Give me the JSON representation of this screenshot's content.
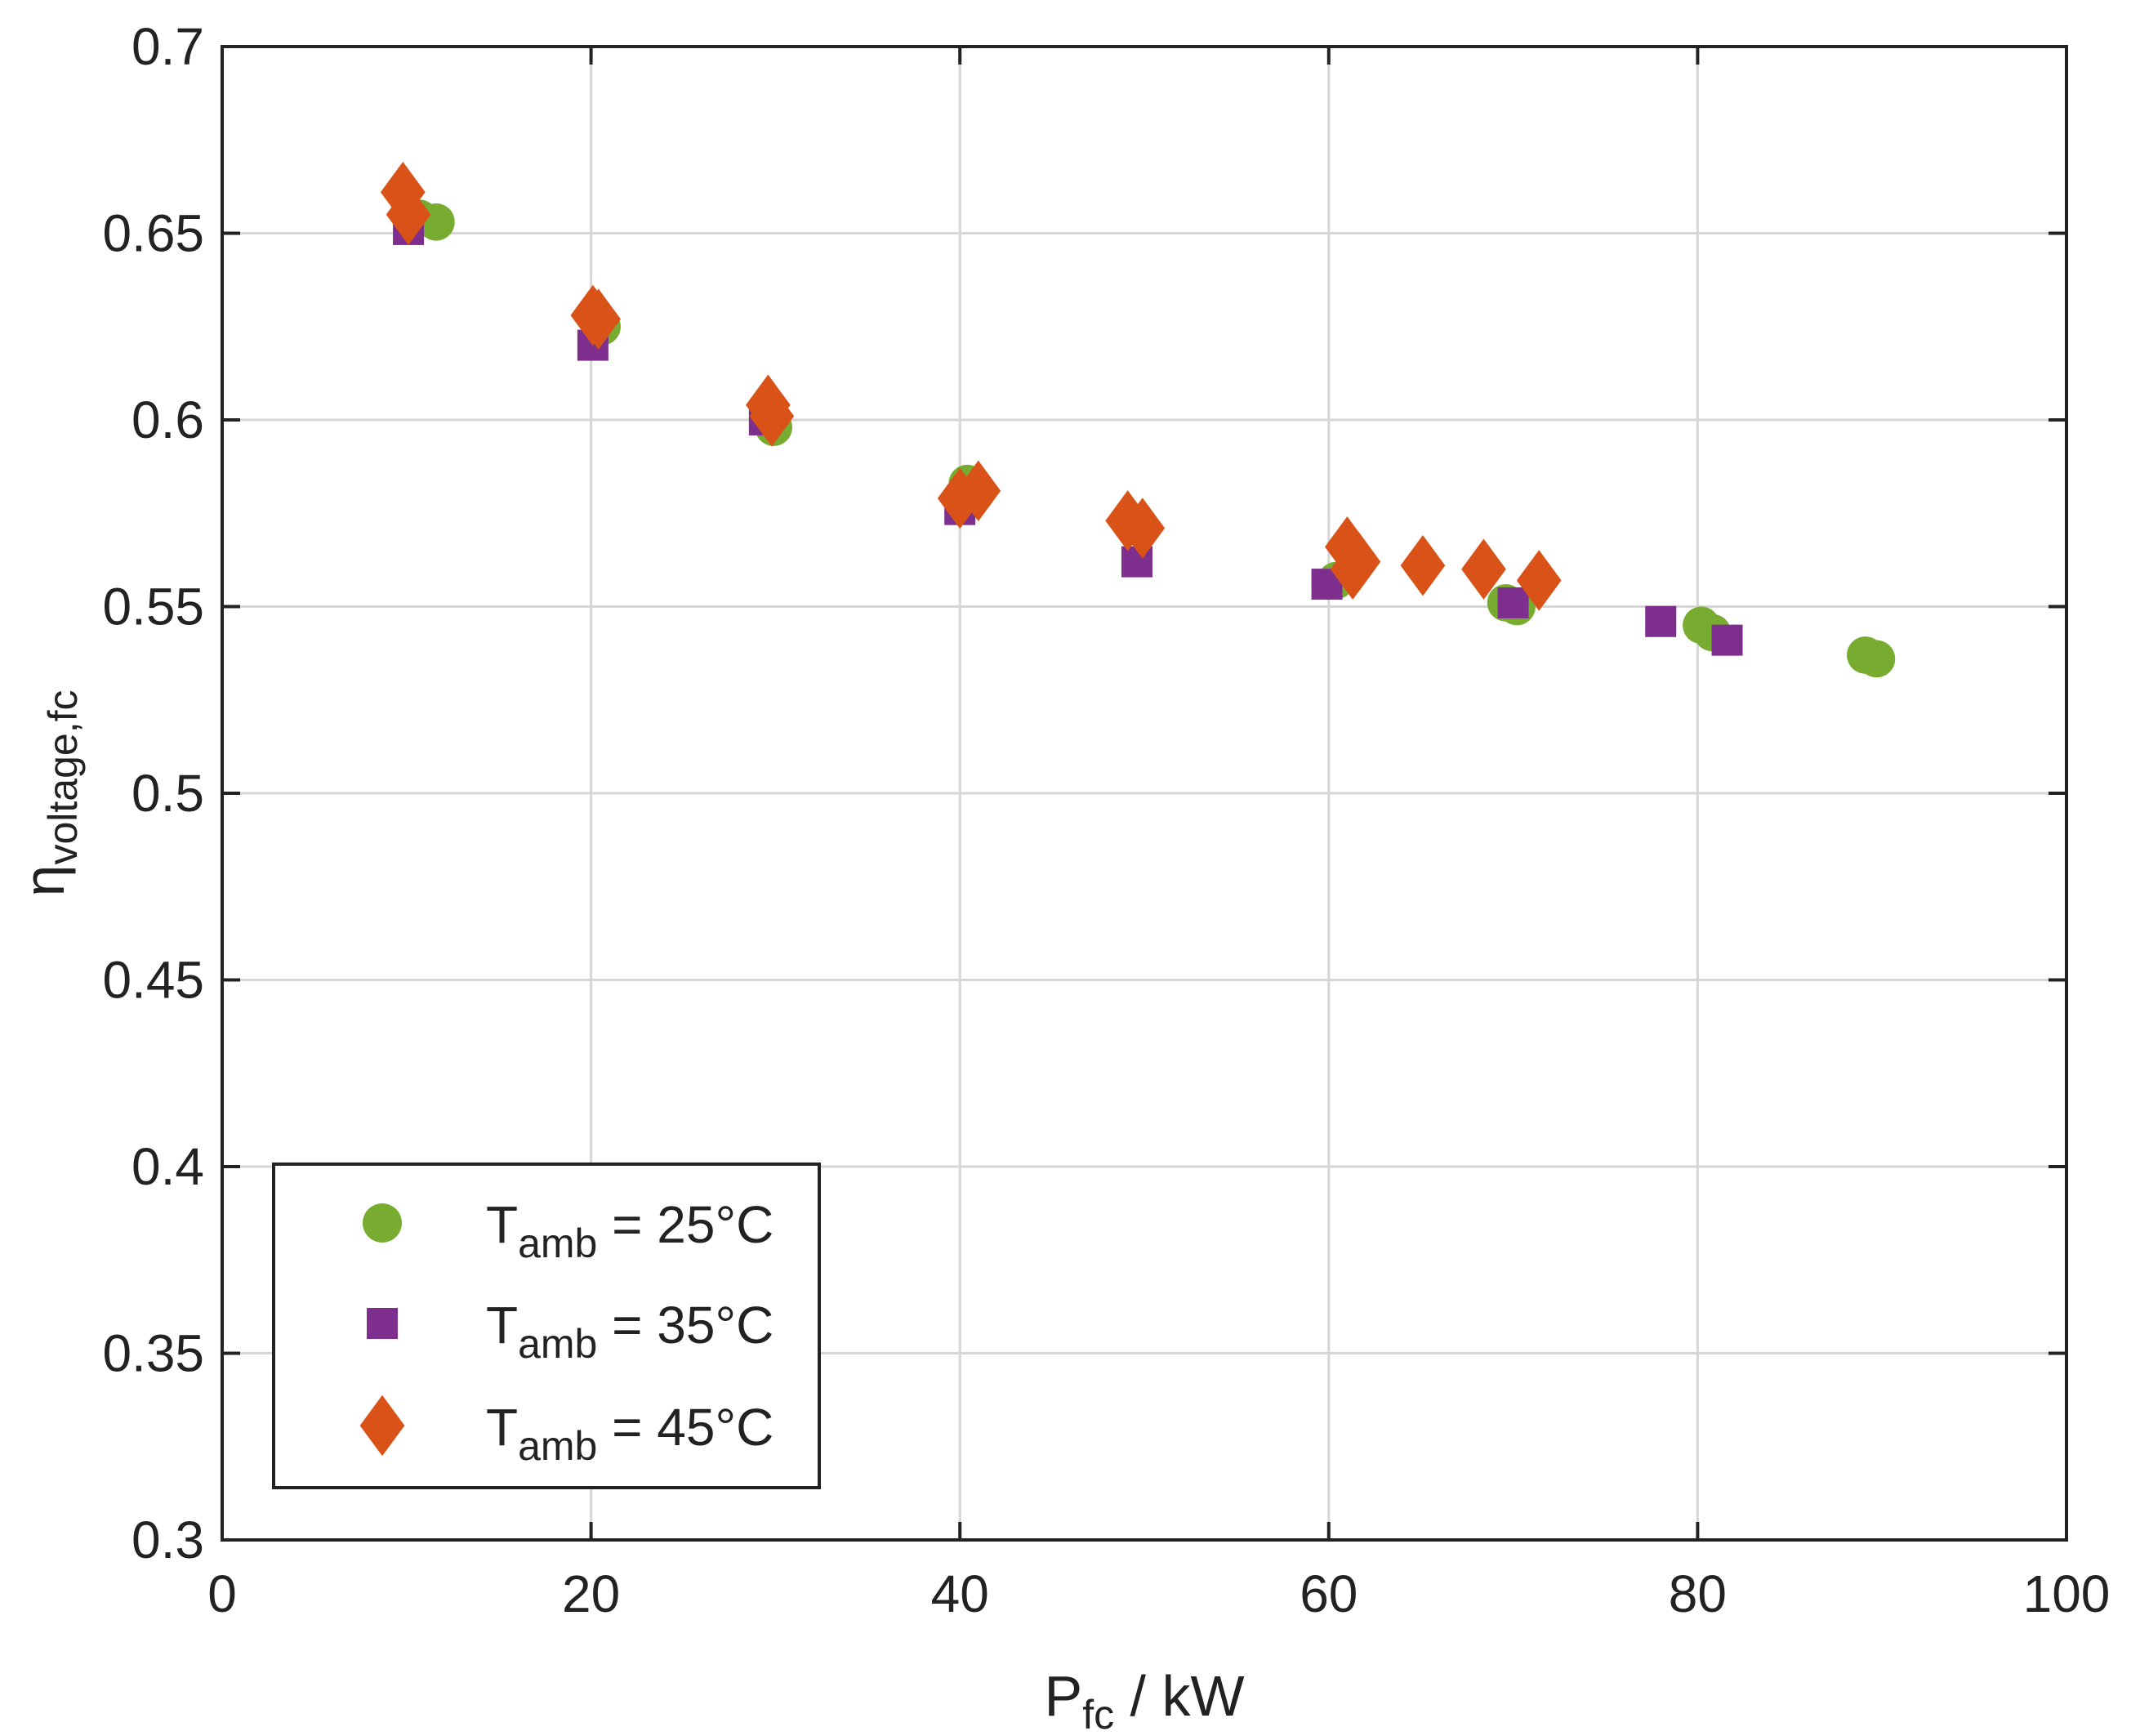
{
  "chart_data": {
    "type": "scatter",
    "title": "",
    "xlabel": {
      "main": "P",
      "sub": "fc",
      "rest": " / kW"
    },
    "ylabel": {
      "main": "η",
      "sub": "voltage,fc"
    },
    "xlim": [
      0,
      100
    ],
    "ylim": [
      0.3,
      0.7
    ],
    "xticks": [
      0,
      20,
      40,
      60,
      80,
      100
    ],
    "xtick_labels": [
      "0",
      "20",
      "40",
      "60",
      "80",
      "100"
    ],
    "yticks": [
      0.3,
      0.35,
      0.4,
      0.45,
      0.5,
      0.55,
      0.6,
      0.65,
      0.7
    ],
    "ytick_labels": [
      "0.3",
      "0.35",
      "0.4",
      "0.45",
      "0.5",
      "0.55",
      "0.6",
      "0.65",
      "0.7"
    ],
    "grid": true,
    "legend_position": "bottom-left",
    "series": [
      {
        "name": "T_amb = 25°C",
        "legend": {
          "main": "T",
          "sub": "amb",
          "rest": " = 25°C"
        },
        "marker": "circle",
        "color": "#77AC30",
        "points": [
          [
            10.7,
            0.654
          ],
          [
            11.6,
            0.653
          ],
          [
            20.6,
            0.625
          ],
          [
            29.9,
            0.598
          ],
          [
            40.4,
            0.583
          ],
          [
            60.4,
            0.557
          ],
          [
            69.6,
            0.551
          ],
          [
            70.2,
            0.55
          ],
          [
            80.2,
            0.545
          ],
          [
            80.8,
            0.543
          ],
          [
            89.1,
            0.537
          ],
          [
            89.7,
            0.536
          ]
        ]
      },
      {
        "name": "T_amb = 35°C",
        "legend": {
          "main": "T",
          "sub": "amb",
          "rest": " = 35°C"
        },
        "marker": "square",
        "color": "#7E2F8E",
        "points": [
          [
            10.1,
            0.651
          ],
          [
            20.1,
            0.62
          ],
          [
            29.4,
            0.6
          ],
          [
            40.0,
            0.576
          ],
          [
            49.6,
            0.562
          ],
          [
            59.9,
            0.556
          ],
          [
            70.0,
            0.551
          ],
          [
            78.0,
            0.546
          ],
          [
            81.6,
            0.541
          ]
        ]
      },
      {
        "name": "T_amb = 45°C",
        "legend": {
          "main": "T",
          "sub": "amb",
          "rest": " = 45°C"
        },
        "marker": "diamond",
        "color": "#D95319",
        "points": [
          [
            9.8,
            0.661
          ],
          [
            10.1,
            0.655
          ],
          [
            20.1,
            0.628
          ],
          [
            20.4,
            0.627
          ],
          [
            29.6,
            0.604
          ],
          [
            29.8,
            0.601
          ],
          [
            40.0,
            0.579
          ],
          [
            41.0,
            0.581
          ],
          [
            49.1,
            0.573
          ],
          [
            49.9,
            0.571
          ],
          [
            61.0,
            0.566
          ],
          [
            61.6,
            0.562
          ],
          [
            61.3,
            0.56
          ],
          [
            65.1,
            0.561
          ],
          [
            68.4,
            0.56
          ],
          [
            71.4,
            0.557
          ]
        ]
      }
    ]
  }
}
